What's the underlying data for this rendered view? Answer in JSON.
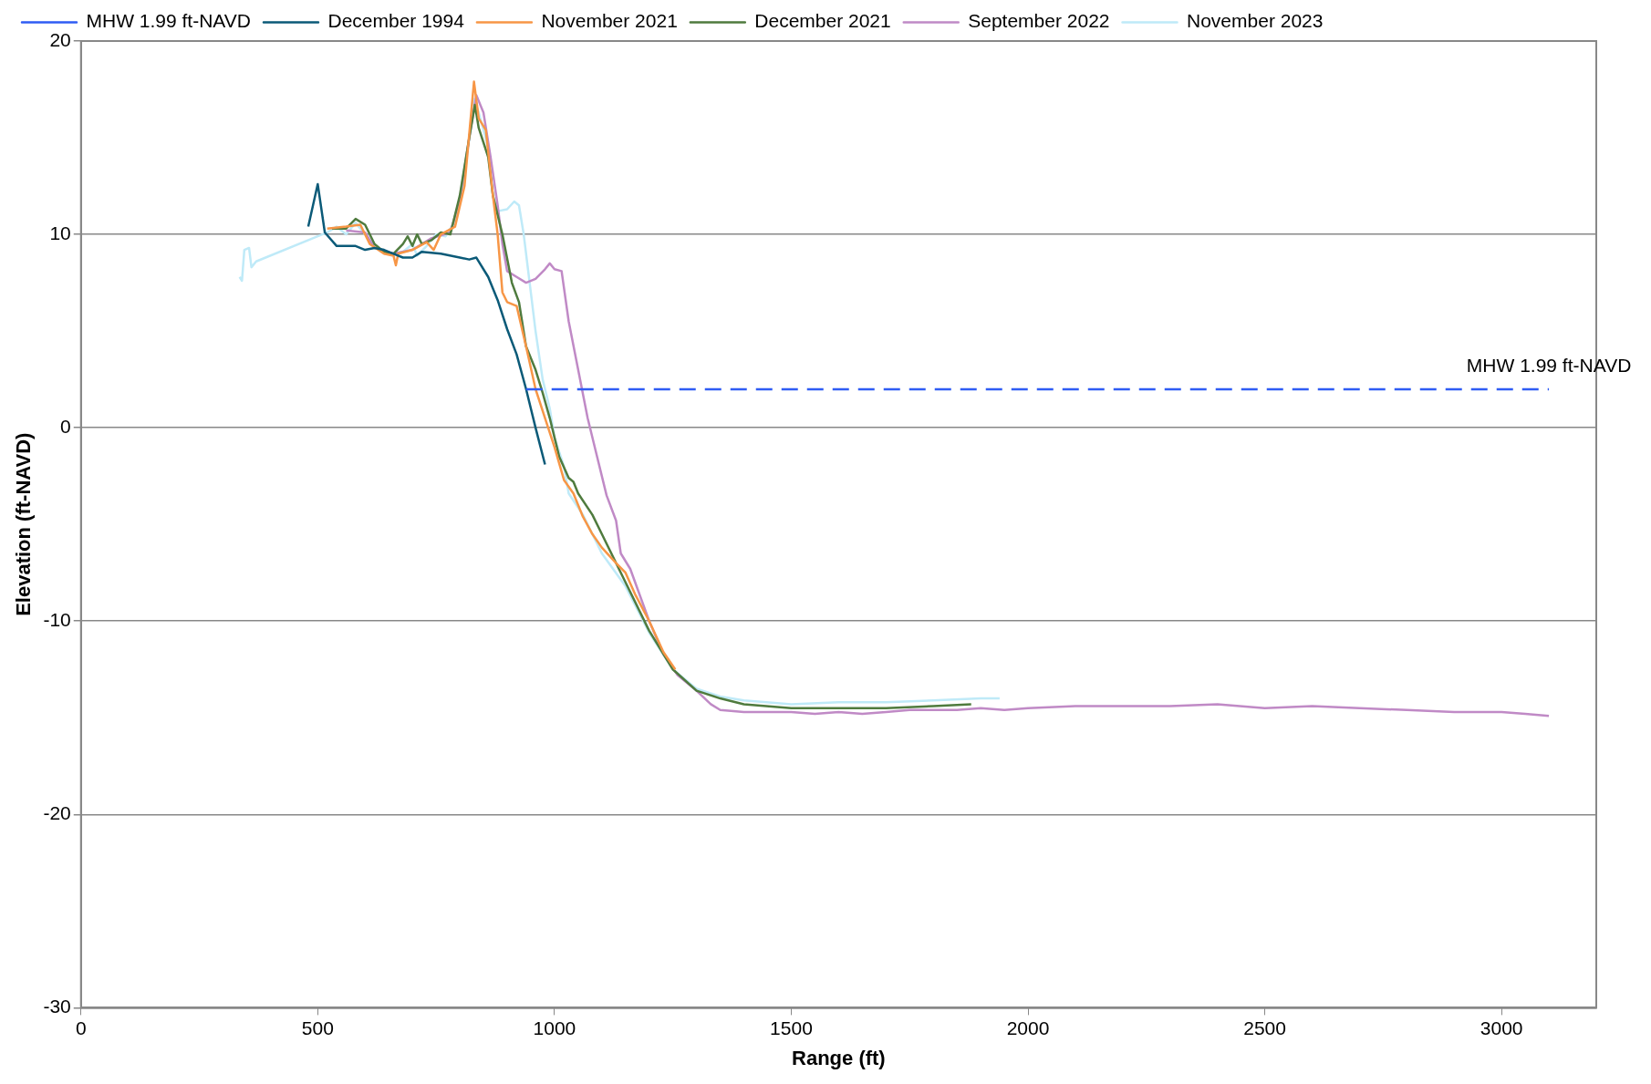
{
  "chart_data": {
    "type": "line",
    "xlabel": "Range (ft)",
    "ylabel": "Elevation (ft-NAVD)",
    "xlim": [
      0,
      3200
    ],
    "xticks": [
      0,
      500,
      1000,
      1500,
      2000,
      2500,
      3000
    ],
    "ylim": [
      -30,
      20
    ],
    "yticks": [
      -30,
      -20,
      -10,
      0,
      10,
      20
    ],
    "grid": "y",
    "legend": "top",
    "marker": "none",
    "annotations": [
      {
        "text": "MHW 1.99 ft-NAVD",
        "x": 3100,
        "y": 1.99
      }
    ],
    "series": [
      {
        "name": "MHW 1.99 ft-NAVD",
        "color": "#2f5cf4",
        "line_style": "dashed",
        "x": [
          940,
          3100
        ],
        "values": [
          1.99,
          1.99
        ]
      },
      {
        "name": "December 1994",
        "color": "#0b5a78",
        "x": [
          480,
          500,
          515,
          540,
          580,
          600,
          620,
          640,
          660,
          680,
          700,
          720,
          760,
          800,
          820,
          835,
          860,
          880,
          900,
          920,
          940,
          960,
          980
        ],
        "values": [
          10.4,
          12.6,
          10.1,
          9.4,
          9.4,
          9.2,
          9.3,
          9.2,
          9.0,
          8.8,
          8.8,
          9.1,
          9.0,
          8.8,
          8.7,
          8.8,
          7.8,
          6.6,
          5.1,
          3.8,
          2.0,
          0.0,
          -1.9
        ]
      },
      {
        "name": "November 2021",
        "color": "#f79646",
        "x": [
          520,
          560,
          590,
          610,
          640,
          660,
          665,
          670,
          700,
          730,
          745,
          760,
          790,
          810,
          830,
          840,
          855,
          870,
          880,
          890,
          900,
          920,
          940,
          960,
          980,
          1000,
          1020,
          1040,
          1060,
          1080,
          1100,
          1130,
          1150,
          1170,
          1200,
          1230,
          1255
        ],
        "values": [
          10.3,
          10.4,
          10.5,
          9.5,
          9.0,
          8.9,
          8.4,
          9.0,
          9.2,
          9.6,
          9.2,
          10.0,
          10.4,
          12.5,
          17.9,
          16.0,
          15.4,
          12.0,
          10.0,
          7.0,
          6.5,
          6.3,
          4.2,
          2.0,
          0.5,
          -1.0,
          -2.7,
          -3.4,
          -4.6,
          -5.5,
          -6.2,
          -7.0,
          -7.5,
          -8.6,
          -10.0,
          -11.6,
          -12.5
        ]
      },
      {
        "name": "December 2021",
        "color": "#4f7b3e",
        "x": [
          530,
          560,
          580,
          600,
          620,
          640,
          660,
          680,
          690,
          700,
          710,
          720,
          740,
          760,
          780,
          800,
          820,
          832,
          840,
          860,
          870,
          890,
          910,
          925,
          940,
          960,
          975,
          990,
          1010,
          1030,
          1040,
          1050,
          1080,
          1100,
          1150,
          1200,
          1250,
          1300,
          1350,
          1400,
          1500,
          1600,
          1700,
          1800,
          1880
        ],
        "values": [
          10.3,
          10.3,
          10.8,
          10.5,
          9.5,
          9.1,
          9.0,
          9.5,
          9.9,
          9.4,
          10.0,
          9.5,
          9.7,
          10.1,
          10.0,
          12.0,
          15.0,
          16.7,
          15.5,
          14.0,
          12.0,
          10.0,
          7.5,
          6.5,
          4.2,
          3.0,
          1.8,
          0.5,
          -1.5,
          -2.6,
          -2.8,
          -3.4,
          -4.5,
          -5.5,
          -8.0,
          -10.5,
          -12.5,
          -13.6,
          -14.0,
          -14.3,
          -14.5,
          -14.5,
          -14.5,
          -14.4,
          -14.3
        ]
      },
      {
        "name": "September 2022",
        "color": "#c08ac6",
        "x": [
          560,
          600,
          620,
          660,
          700,
          740,
          780,
          800,
          820,
          835,
          850,
          865,
          880,
          890,
          900,
          920,
          940,
          960,
          980,
          990,
          1000,
          1015,
          1030,
          1050,
          1070,
          1090,
          1110,
          1130,
          1140,
          1160,
          1200,
          1230,
          1260,
          1300,
          1330,
          1350,
          1400,
          1450,
          1500,
          1550,
          1600,
          1650,
          1700,
          1750,
          1800,
          1850,
          1900,
          1950,
          2000,
          2100,
          2200,
          2300,
          2400,
          2500,
          2600,
          2700,
          2800,
          2900,
          3000,
          3050,
          3100
        ],
        "values": [
          10.2,
          10.1,
          9.3,
          9.0,
          9.2,
          9.8,
          10.1,
          11.8,
          15.0,
          17.2,
          16.3,
          14.0,
          11.5,
          9.5,
          8.1,
          7.8,
          7.5,
          7.7,
          8.2,
          8.5,
          8.2,
          8.1,
          5.5,
          3.0,
          0.5,
          -1.5,
          -3.5,
          -4.8,
          -6.5,
          -7.3,
          -10.0,
          -11.7,
          -12.8,
          -13.6,
          -14.3,
          -14.6,
          -14.7,
          -14.7,
          -14.7,
          -14.8,
          -14.7,
          -14.8,
          -14.7,
          -14.6,
          -14.6,
          -14.6,
          -14.5,
          -14.6,
          -14.5,
          -14.4,
          -14.4,
          -14.4,
          -14.3,
          -14.5,
          -14.4,
          -14.5,
          -14.6,
          -14.7,
          -14.7,
          -14.8,
          -14.9
        ]
      },
      {
        "name": "November 2023",
        "color": "#bfeaf8",
        "x": [
          335,
          340,
          345,
          355,
          360,
          370,
          520,
          540,
          560,
          580,
          600,
          620,
          640,
          660,
          680,
          700,
          710,
          730,
          750,
          770,
          790,
          810,
          830,
          840,
          860,
          870,
          880,
          900,
          915,
          925,
          935,
          950,
          960,
          975,
          990,
          1000,
          1020,
          1030,
          1060,
          1100,
          1150,
          1200,
          1250,
          1300,
          1350,
          1400,
          1500,
          1600,
          1700,
          1800,
          1900,
          1940
        ],
        "values": [
          7.8,
          7.6,
          9.2,
          9.3,
          8.3,
          8.6,
          10.1,
          10.4,
          10.0,
          10.6,
          10.0,
          null,
          9.0,
          9.0,
          9.1,
          9.5,
          8.9,
          9.4,
          10.0,
          9.9,
          10.7,
          13.0,
          17.0,
          16.3,
          14.5,
          12.0,
          11.2,
          11.3,
          11.7,
          11.5,
          10.0,
          7.0,
          5.0,
          2.5,
          1.0,
          -0.5,
          -2.0,
          -3.4,
          -4.5,
          -6.5,
          -8.2,
          -10.6,
          -12.5,
          -13.5,
          -13.9,
          -14.1,
          -14.3,
          -14.2,
          -14.2,
          -14.1,
          -14.0,
          -14.0
        ]
      }
    ]
  }
}
